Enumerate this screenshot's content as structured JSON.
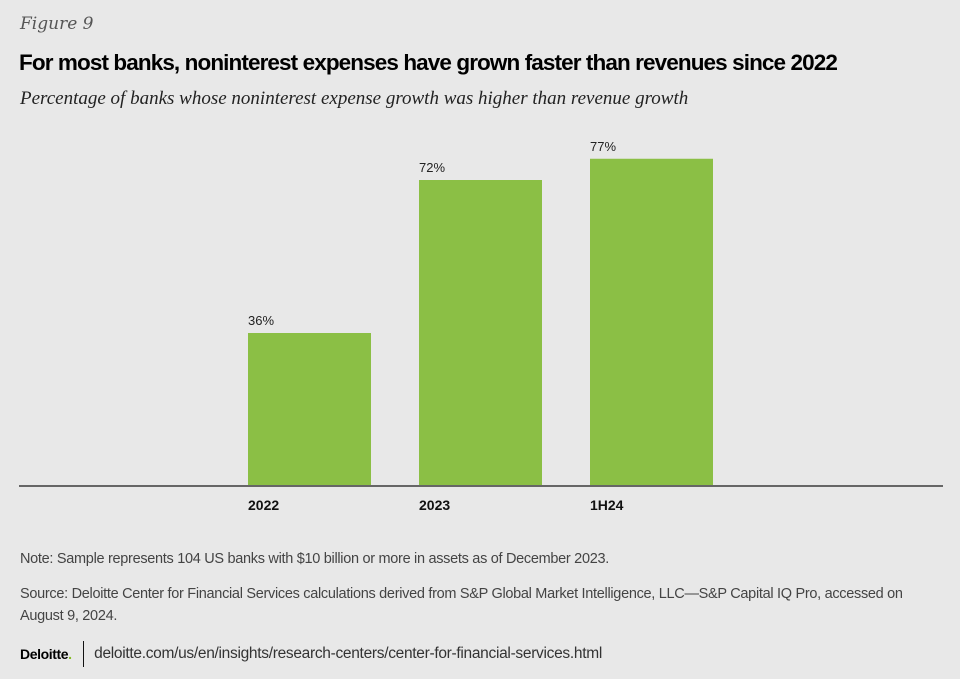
{
  "figure_label": "Figure 9",
  "title": "For most banks, noninterest expenses have grown faster than revenues since 2022",
  "subtitle": "Percentage of banks whose noninterest expense growth was higher than revenue growth",
  "note": "Note: Sample represents 104 US banks with $10 billion or more in assets as of December 2023.",
  "source": "Source: Deloitte Center for Financial Services calculations derived from S&P Global Market Intelligence, LLC—S&P Capital IQ Pro, accessed on August 9, 2024.",
  "footer": {
    "logo": "Deloitte",
    "logo_dot": ".",
    "url": "deloitte.com/us/en/insights/research-centers/center-for-financial-services.html"
  },
  "colors": {
    "bar": "#8bbf45",
    "axis": "#666666",
    "brand_green": "#86bc25"
  },
  "chart_data": {
    "type": "bar",
    "title": "For most banks, noninterest expenses have grown faster than revenues since 2022",
    "subtitle": "Percentage of banks whose noninterest expense growth was higher than revenue growth",
    "categories": [
      "2022",
      "2023",
      "1H24"
    ],
    "values": [
      36,
      72,
      77
    ],
    "data_labels": [
      "36%",
      "72%",
      "77%"
    ],
    "xlabel": "",
    "ylabel": "",
    "ylim": [
      0,
      100
    ],
    "unit": "%",
    "grid": false,
    "legend": "none"
  }
}
